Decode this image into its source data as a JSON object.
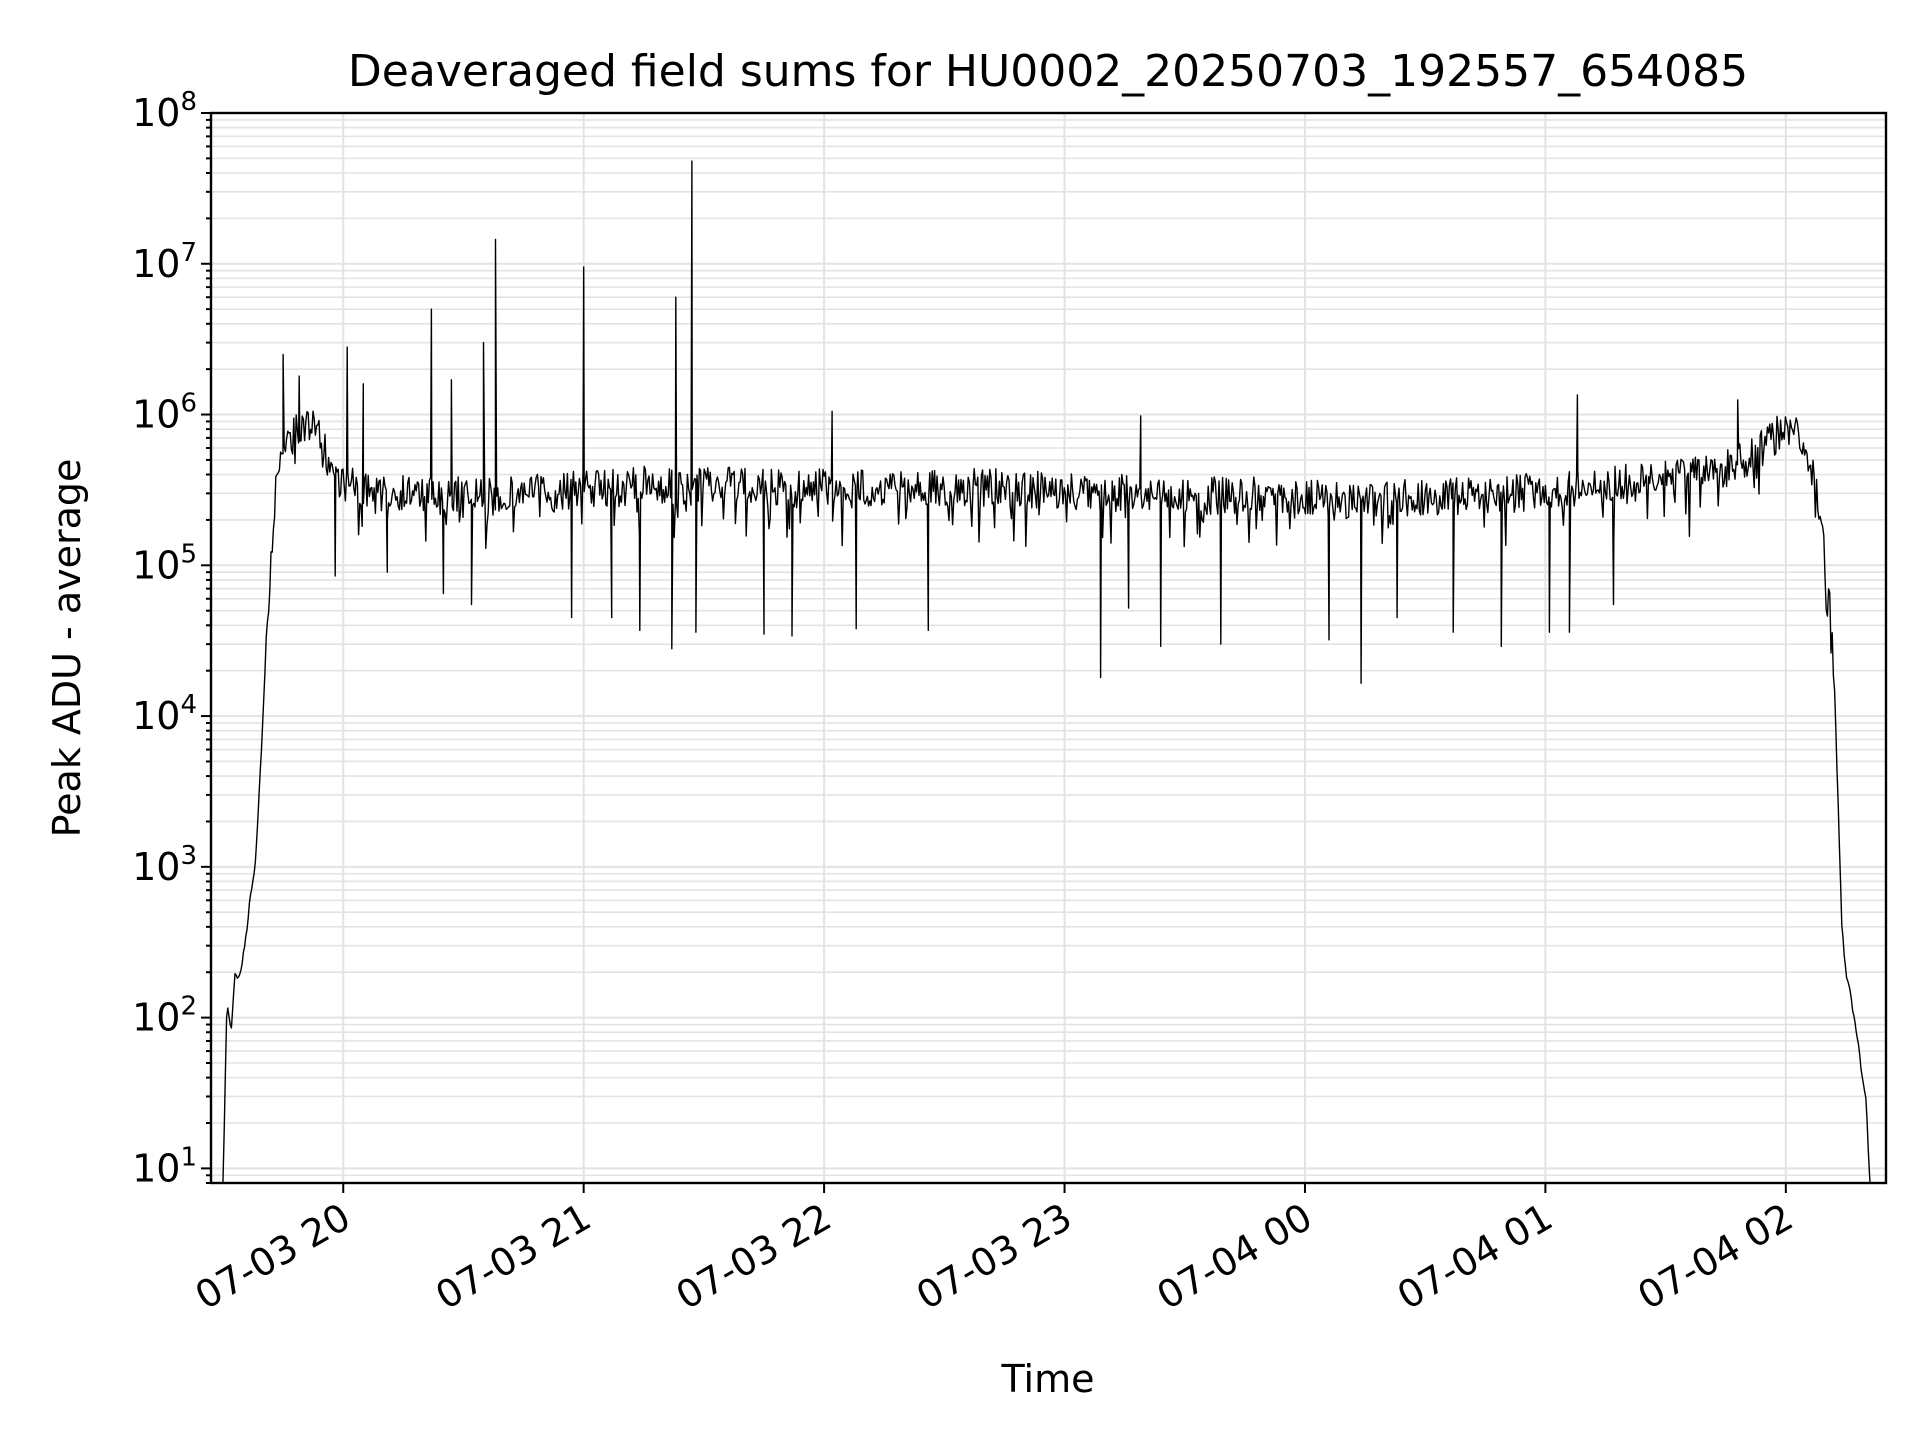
{
  "chart_data": {
    "type": "line",
    "title": "Deaveraged field sums for HU0002_20250703_192557_654085",
    "xlabel": "Time",
    "ylabel": "Peak ADU - average",
    "yscale": "log",
    "ylim": [
      8,
      100000000
    ],
    "xlim": [
      "2025-07-03 19:27",
      "2025-07-04 02:25"
    ],
    "grid": true,
    "line_color": "#000000",
    "grid_color": "#e3e3e3",
    "x_ticks": [
      {
        "t": "2025-07-03 20:00",
        "label": "07-03 20"
      },
      {
        "t": "2025-07-03 21:00",
        "label": "07-03 21"
      },
      {
        "t": "2025-07-03 22:00",
        "label": "07-03 22"
      },
      {
        "t": "2025-07-03 23:00",
        "label": "07-03 23"
      },
      {
        "t": "2025-07-04 00:00",
        "label": "07-04 00"
      },
      {
        "t": "2025-07-04 01:00",
        "label": "07-04 01"
      },
      {
        "t": "2025-07-04 02:00",
        "label": "07-04 02"
      }
    ],
    "y_ticks": [
      {
        "v": 10,
        "base": "10",
        "exp": "1"
      },
      {
        "v": 100,
        "base": "10",
        "exp": "2"
      },
      {
        "v": 1000,
        "base": "10",
        "exp": "3"
      },
      {
        "v": 10000,
        "base": "10",
        "exp": "4"
      },
      {
        "v": 100000,
        "base": "10",
        "exp": "5"
      },
      {
        "v": 1000000,
        "base": "10",
        "exp": "6"
      },
      {
        "v": 10000000,
        "base": "10",
        "exp": "7"
      },
      {
        "v": 100000000,
        "base": "10",
        "exp": "8"
      }
    ],
    "series": [
      {
        "x": [
          "2025-07-03 19:30",
          "2025-07-03 19:31",
          "2025-07-03 19:32",
          "2025-07-03 19:33",
          "2025-07-03 19:34",
          "2025-07-03 19:35",
          "2025-07-03 19:36",
          "2025-07-03 19:37",
          "2025-07-03 19:38",
          "2025-07-03 19:39",
          "2025-07-03 19:40",
          "2025-07-03 19:41",
          "2025-07-03 19:42",
          "2025-07-03 19:43",
          "2025-07-03 19:45",
          "2025-07-03 19:48",
          "2025-07-03 19:51",
          "2025-07-03 19:54",
          "2025-07-03 19:57",
          "2025-07-03 20:00",
          "2025-07-03 20:03",
          "2025-07-03 20:06",
          "2025-07-03 20:10",
          "2025-07-03 20:14",
          "2025-07-03 20:18",
          "2025-07-03 20:22",
          "2025-07-03 20:25",
          "2025-07-03 20:29",
          "2025-07-03 20:33",
          "2025-07-03 20:38",
          "2025-07-03 20:43",
          "2025-07-03 20:48",
          "2025-07-03 20:53",
          "2025-07-03 20:58",
          "2025-07-03 21:00",
          "2025-07-03 21:05",
          "2025-07-03 21:10",
          "2025-07-03 21:15",
          "2025-07-03 21:20",
          "2025-07-03 21:25",
          "2025-07-03 21:27",
          "2025-07-03 21:32",
          "2025-07-03 21:40",
          "2025-07-03 21:50",
          "2025-07-03 22:00",
          "2025-07-03 22:10",
          "2025-07-03 22:20",
          "2025-07-03 22:30",
          "2025-07-03 22:40",
          "2025-07-03 22:50",
          "2025-07-03 23:00",
          "2025-07-03 23:08",
          "2025-07-03 23:15",
          "2025-07-03 23:25",
          "2025-07-03 23:35",
          "2025-07-03 23:45",
          "2025-07-04 00:00",
          "2025-07-04 00:10",
          "2025-07-04 00:14",
          "2025-07-04 00:20",
          "2025-07-04 00:30",
          "2025-07-04 00:40",
          "2025-07-04 00:50",
          "2025-07-04 01:00",
          "2025-07-04 01:10",
          "2025-07-04 01:15",
          "2025-07-04 01:25",
          "2025-07-04 01:35",
          "2025-07-04 01:45",
          "2025-07-04 01:50",
          "2025-07-04 01:55",
          "2025-07-04 02:00",
          "2025-07-04 02:03",
          "2025-07-04 02:06",
          "2025-07-04 02:08",
          "2025-07-04 02:10",
          "2025-07-04 02:11",
          "2025-07-04 02:12",
          "2025-07-04 02:13",
          "2025-07-04 02:14",
          "2025-07-04 02:15",
          "2025-07-04 02:16",
          "2025-07-04 02:17",
          "2025-07-04 02:18",
          "2025-07-04 02:19",
          "2025-07-04 02:20",
          "2025-07-04 02:21"
        ],
        "y": [
          8,
          130,
          80,
          200,
          180,
          250,
          400,
          700,
          1000,
          3000,
          10000,
          40000,
          120000,
          300000,
          600000,
          800000,
          900000,
          700000,
          450000,
          350000,
          330000,
          320000,
          300000,
          310000,
          300000,
          290000,
          280000,
          300000,
          290000,
          280000,
          300000,
          310000,
          300000,
          320000,
          330000,
          320000,
          330000,
          340000,
          330000,
          320000,
          330000,
          340000,
          330000,
          330000,
          330000,
          330000,
          320000,
          320000,
          330000,
          320000,
          310000,
          300000,
          300000,
          300000,
          290000,
          290000,
          280000,
          270000,
          260000,
          280000,
          280000,
          290000,
          300000,
          310000,
          330000,
          340000,
          360000,
          390000,
          430000,
          500000,
          650000,
          800000,
          700000,
          500000,
          300000,
          100000,
          50000,
          20000,
          3000,
          400,
          200,
          150,
          100,
          70,
          40,
          30,
          8
        ]
      }
    ],
    "spikes": [
      {
        "t": "2025-07-03 19:45",
        "v": 2500000
      },
      {
        "t": "2025-07-03 19:49",
        "v": 1800000
      },
      {
        "t": "2025-07-03 20:01",
        "v": 2800000
      },
      {
        "t": "2025-07-03 20:05",
        "v": 1600000
      },
      {
        "t": "2025-07-03 20:22",
        "v": 5000000
      },
      {
        "t": "2025-07-03 20:27",
        "v": 1700000
      },
      {
        "t": "2025-07-03 20:35",
        "v": 3000000
      },
      {
        "t": "2025-07-03 20:38",
        "v": 14500000
      },
      {
        "t": "2025-07-03 21:00",
        "v": 9500000
      },
      {
        "t": "2025-07-03 21:23",
        "v": 6000000
      },
      {
        "t": "2025-07-03 21:27",
        "v": 48000000
      },
      {
        "t": "2025-07-03 22:02",
        "v": 1050000
      },
      {
        "t": "2025-07-03 23:19",
        "v": 980000
      },
      {
        "t": "2025-07-04 01:08",
        "v": 1350000
      },
      {
        "t": "2025-07-04 01:48",
        "v": 1250000
      }
    ],
    "dips": [
      {
        "t": "2025-07-03 19:58",
        "v": 85000
      },
      {
        "t": "2025-07-03 20:11",
        "v": 90000
      },
      {
        "t": "2025-07-03 20:25",
        "v": 65000
      },
      {
        "t": "2025-07-03 20:32",
        "v": 55000
      },
      {
        "t": "2025-07-03 20:57",
        "v": 45000
      },
      {
        "t": "2025-07-03 21:07",
        "v": 45000
      },
      {
        "t": "2025-07-03 21:14",
        "v": 37000
      },
      {
        "t": "2025-07-03 21:22",
        "v": 28000
      },
      {
        "t": "2025-07-03 21:28",
        "v": 36000
      },
      {
        "t": "2025-07-03 21:45",
        "v": 35000
      },
      {
        "t": "2025-07-03 21:52",
        "v": 34000
      },
      {
        "t": "2025-07-03 22:08",
        "v": 38000
      },
      {
        "t": "2025-07-03 22:26",
        "v": 37000
      },
      {
        "t": "2025-07-03 23:09",
        "v": 18000
      },
      {
        "t": "2025-07-03 23:16",
        "v": 52000
      },
      {
        "t": "2025-07-03 23:24",
        "v": 29000
      },
      {
        "t": "2025-07-03 23:39",
        "v": 30000
      },
      {
        "t": "2025-07-04 00:06",
        "v": 32000
      },
      {
        "t": "2025-07-04 00:14",
        "v": 16500
      },
      {
        "t": "2025-07-04 00:23",
        "v": 45000
      },
      {
        "t": "2025-07-04 00:37",
        "v": 36000
      },
      {
        "t": "2025-07-04 00:49",
        "v": 29000
      },
      {
        "t": "2025-07-04 01:01",
        "v": 36000
      },
      {
        "t": "2025-07-04 01:06",
        "v": 36000
      },
      {
        "t": "2025-07-04 01:17",
        "v": 55000
      }
    ]
  }
}
